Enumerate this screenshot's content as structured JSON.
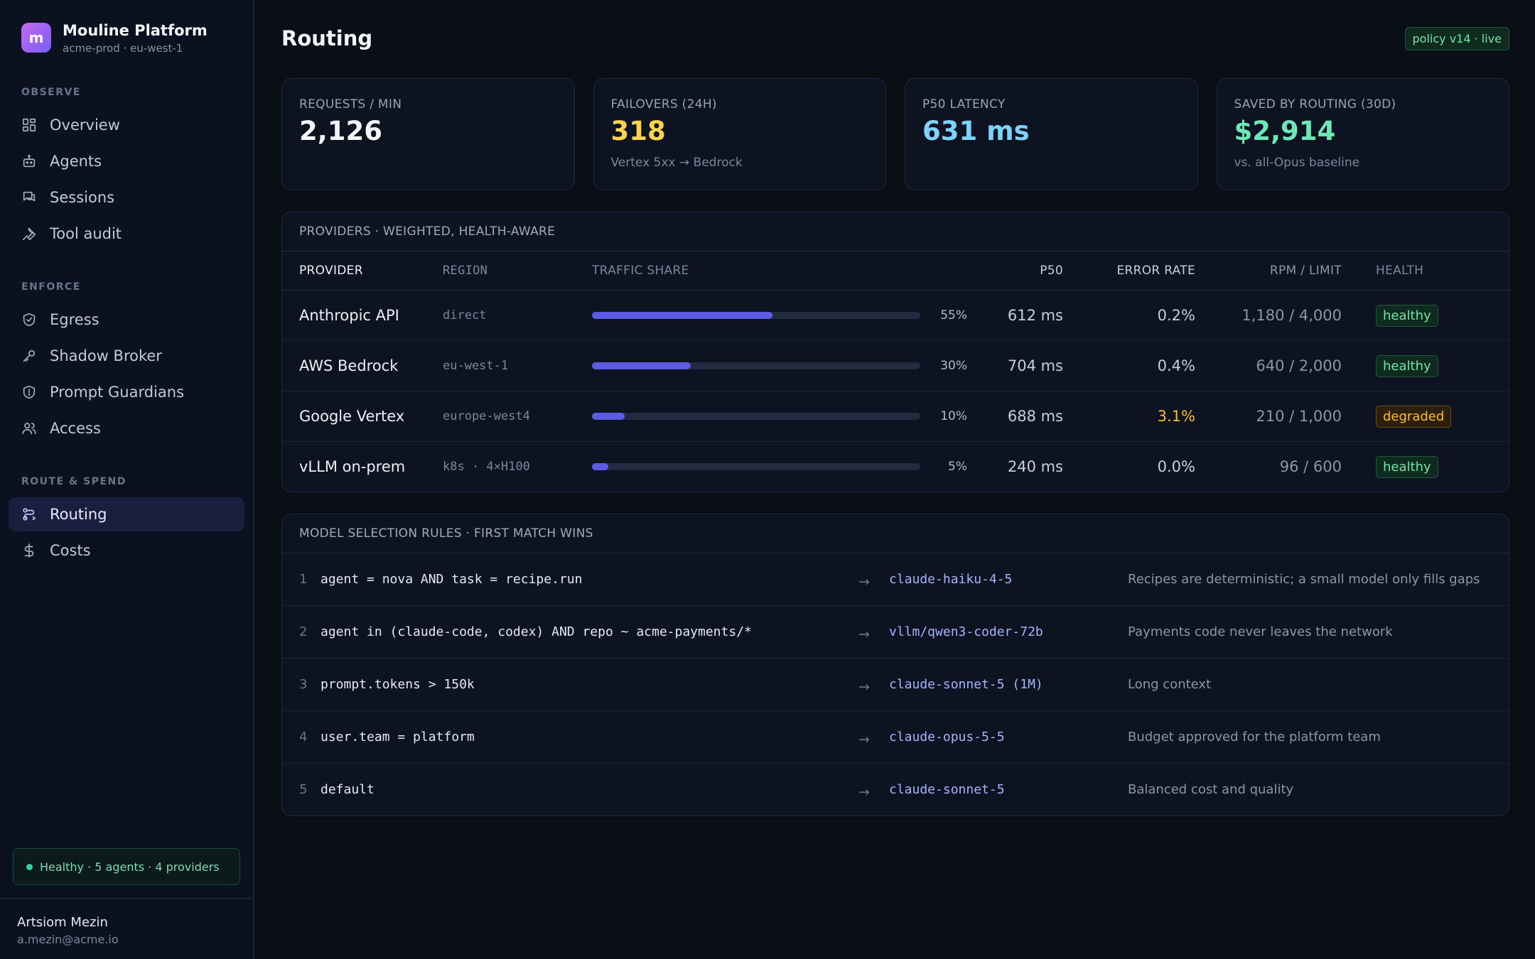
{
  "brand": {
    "logo_letter": "m",
    "title": "Mouline Platform",
    "subtitle": "acme-prod · eu-west-1"
  },
  "nav": {
    "sections": [
      {
        "heading": "OBSERVE",
        "items": [
          {
            "label": "Overview",
            "icon": "grid-icon"
          },
          {
            "label": "Agents",
            "icon": "bot-icon"
          },
          {
            "label": "Sessions",
            "icon": "chat-icon"
          },
          {
            "label": "Tool audit",
            "icon": "wrench-icon"
          }
        ]
      },
      {
        "heading": "ENFORCE",
        "items": [
          {
            "label": "Egress",
            "icon": "shield-check-icon"
          },
          {
            "label": "Shadow Broker",
            "icon": "key-icon"
          },
          {
            "label": "Prompt Guardians",
            "icon": "shield-alert-icon"
          },
          {
            "label": "Access",
            "icon": "users-icon"
          }
        ]
      },
      {
        "heading": "ROUTE & SPEND",
        "items": [
          {
            "label": "Routing",
            "icon": "route-icon",
            "active": true
          },
          {
            "label": "Costs",
            "icon": "dollar-icon"
          }
        ]
      }
    ]
  },
  "health_pill": "Healthy · 5 agents · 4 providers",
  "user": {
    "name": "Artsiom Mezin",
    "email": "a.mezin@acme.io"
  },
  "page": {
    "title": "Routing",
    "policy_badge": "policy v14 · live"
  },
  "stats": [
    {
      "label": "REQUESTS / MIN",
      "value": "2,126",
      "sub": "",
      "color": "#f3f5fa"
    },
    {
      "label": "FAILOVERS (24H)",
      "value": "318",
      "sub": "Vertex 5xx → Bedrock",
      "color": "#fcd34d"
    },
    {
      "label": "P50 LATENCY",
      "value": "631 ms",
      "sub": "",
      "color": "#7dd3fc"
    },
    {
      "label": "SAVED BY ROUTING (30D)",
      "value": "$2,914",
      "sub": "vs. all-Opus baseline",
      "color": "#6ee7b7"
    }
  ],
  "providers": {
    "title": "PROVIDERS · WEIGHTED, HEALTH-AWARE",
    "columns": {
      "provider": "PROVIDER",
      "region": "REGION",
      "share": "TRAFFIC SHARE",
      "p50": "P50",
      "error": "ERROR RATE",
      "rpm": "RPM / LIMIT",
      "health": "HEALTH"
    },
    "rows": [
      {
        "provider": "Anthropic API",
        "region": "direct",
        "share_pct": 55,
        "share_label": "55%",
        "p50": "612 ms",
        "error": "0.2%",
        "error_warn": false,
        "rpm": "1,180 / 4,000",
        "health": "healthy"
      },
      {
        "provider": "AWS Bedrock",
        "region": "eu-west-1",
        "share_pct": 30,
        "share_label": "30%",
        "p50": "704 ms",
        "error": "0.4%",
        "error_warn": false,
        "rpm": "640 / 2,000",
        "health": "healthy"
      },
      {
        "provider": "Google Vertex",
        "region": "europe-west4",
        "share_pct": 10,
        "share_label": "10%",
        "p50": "688 ms",
        "error": "3.1%",
        "error_warn": true,
        "rpm": "210 / 1,000",
        "health": "degraded"
      },
      {
        "provider": "vLLM on-prem",
        "region": "k8s · 4×H100",
        "share_pct": 5,
        "share_label": "5%",
        "p50": "240 ms",
        "error": "0.0%",
        "error_warn": false,
        "rpm": "96 / 600",
        "health": "healthy"
      }
    ]
  },
  "rules": {
    "title": "MODEL SELECTION RULES · FIRST MATCH WINS",
    "arrow": "→",
    "items": [
      {
        "num": "1",
        "condition": "agent = nova AND task = recipe.run",
        "model": "claude-haiku-4-5",
        "note": "Recipes are deterministic; a small model only fills gaps"
      },
      {
        "num": "2",
        "condition": "agent in (claude-code, codex) AND repo ~ acme-payments/*",
        "model": "vllm/qwen3-coder-72b",
        "note": "Payments code never leaves the network"
      },
      {
        "num": "3",
        "condition": "prompt.tokens > 150k",
        "model": "claude-sonnet-5 (1M)",
        "note": "Long context"
      },
      {
        "num": "4",
        "condition": "user.team = platform",
        "model": "claude-opus-5-5",
        "note": "Budget approved for the platform team"
      },
      {
        "num": "5",
        "condition": "default",
        "model": "claude-sonnet-5",
        "note": "Balanced cost and quality"
      }
    ]
  }
}
